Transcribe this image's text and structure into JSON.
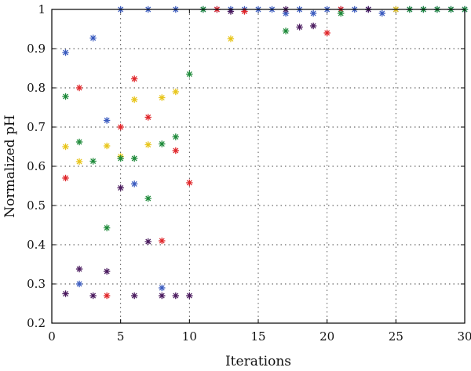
{
  "chart_data": {
    "type": "scatter",
    "xlabel": "Iterations",
    "ylabel": "Normalized pH",
    "xlim": [
      0,
      30
    ],
    "ylim": [
      0.2,
      1.0
    ],
    "xticks": [
      0,
      5,
      10,
      15,
      20,
      25,
      30
    ],
    "yticks": [
      0.2,
      0.3,
      0.4,
      0.5,
      0.6,
      0.7,
      0.8,
      0.9,
      1.0
    ],
    "ytick_labels": [
      "0.2",
      "0.3",
      "0.4",
      "0.5",
      "0.6",
      "0.7",
      "0.8",
      "0.9",
      "1"
    ],
    "grid": true,
    "marker": "asterisk",
    "series": [
      {
        "color": "#3a5bbf",
        "points": [
          [
            1,
            0.89
          ],
          [
            2,
            0.3
          ],
          [
            3,
            0.927
          ],
          [
            4,
            0.717
          ],
          [
            5,
            1.0
          ],
          [
            6,
            0.555
          ],
          [
            7,
            1.0
          ],
          [
            8,
            0.29
          ],
          [
            9,
            1.0
          ],
          [
            11,
            1.0
          ],
          [
            12,
            1.0
          ],
          [
            13,
            1.0
          ],
          [
            14,
            1.0
          ],
          [
            15,
            1.0
          ],
          [
            16,
            1.0
          ],
          [
            17,
            0.99
          ],
          [
            18,
            1.0
          ],
          [
            19,
            0.99
          ],
          [
            20,
            1.0
          ],
          [
            21,
            1.0
          ],
          [
            22,
            1.0
          ],
          [
            23,
            1.0
          ],
          [
            24,
            0.99
          ],
          [
            25,
            1.0
          ],
          [
            26,
            1.0
          ],
          [
            27,
            1.0
          ],
          [
            28,
            1.0
          ],
          [
            29,
            1.0
          ],
          [
            30,
            1.0
          ]
        ]
      },
      {
        "color": "#e0262a",
        "points": [
          [
            1,
            0.57
          ],
          [
            2,
            0.8
          ],
          [
            4,
            0.27
          ],
          [
            5,
            0.7
          ],
          [
            6,
            0.823
          ],
          [
            7,
            0.725
          ],
          [
            8,
            0.41
          ],
          [
            9,
            0.64
          ],
          [
            10,
            0.558
          ],
          [
            12,
            1.0
          ],
          [
            14,
            0.995
          ],
          [
            20,
            0.94
          ],
          [
            21,
            1.0
          ]
        ]
      },
      {
        "color": "#e8c51a",
        "points": [
          [
            1,
            0.65
          ],
          [
            2,
            0.612
          ],
          [
            4,
            0.652
          ],
          [
            5,
            0.625
          ],
          [
            6,
            0.77
          ],
          [
            7,
            0.655
          ],
          [
            8,
            0.775
          ],
          [
            9,
            0.79
          ],
          [
            13,
            0.925
          ],
          [
            25,
            1.0
          ]
        ]
      },
      {
        "color": "#1e8a3a",
        "points": [
          [
            1,
            0.778
          ],
          [
            2,
            0.662
          ],
          [
            3,
            0.613
          ],
          [
            4,
            0.443
          ],
          [
            5,
            0.62
          ],
          [
            6,
            0.62
          ],
          [
            7,
            0.518
          ],
          [
            8,
            0.657
          ],
          [
            9,
            0.675
          ],
          [
            10,
            0.835
          ],
          [
            11,
            1.0
          ],
          [
            17,
            0.945
          ],
          [
            21,
            0.99
          ],
          [
            26,
            1.0
          ],
          [
            27,
            1.0
          ],
          [
            28,
            1.0
          ],
          [
            29,
            1.0
          ],
          [
            30,
            1.0
          ]
        ]
      },
      {
        "color": "#4a1a5e",
        "points": [
          [
            1,
            0.275
          ],
          [
            2,
            0.338
          ],
          [
            3,
            0.27
          ],
          [
            4,
            0.332
          ],
          [
            5,
            0.545
          ],
          [
            6,
            0.27
          ],
          [
            7,
            0.408
          ],
          [
            8,
            0.27
          ],
          [
            9,
            0.27
          ],
          [
            10,
            0.27
          ],
          [
            13,
            0.995
          ],
          [
            17,
            1.0
          ],
          [
            18,
            0.955
          ],
          [
            19,
            0.958
          ],
          [
            23,
            1.0
          ]
        ]
      }
    ]
  }
}
